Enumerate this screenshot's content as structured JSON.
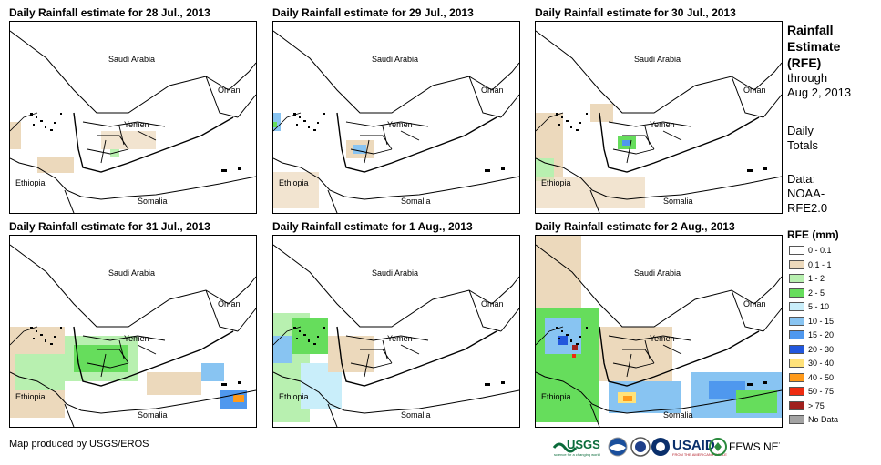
{
  "panels": [
    {
      "title": "Daily Rainfall estimate for 28 Jul., 2013"
    },
    {
      "title": "Daily Rainfall estimate for 29 Jul., 2013"
    },
    {
      "title": "Daily Rainfall estimate for 30 Jul., 2013"
    },
    {
      "title": "Daily Rainfall estimate for 31 Jul., 2013"
    },
    {
      "title": "Daily Rainfall estimate for 1 Aug., 2013"
    },
    {
      "title": "Daily Rainfall estimate for 2 Aug., 2013"
    }
  ],
  "places": {
    "saudi_arabia": "Saudi Arabia",
    "oman": "Oman",
    "yemen": "Yemen",
    "ethiopia": "Ethiopia",
    "somalia": "Somalia"
  },
  "sidebar": {
    "title_line1": "Rainfall",
    "title_line2": "Estimate",
    "title_line3": "(RFE)",
    "through": "through",
    "date": "Aug 2, 2013",
    "daily_line1": "Daily",
    "daily_line2": "Totals",
    "data_line1": "Data:",
    "data_line2": "NOAA-",
    "data_line3": "RFE2.0"
  },
  "legend": {
    "title": "RFE (mm)",
    "items": [
      {
        "label": "0 - 0.1",
        "color": "#ffffff"
      },
      {
        "label": "0.1 - 1",
        "color": "#ecd9bc"
      },
      {
        "label": "1 - 2",
        "color": "#b8f0b0"
      },
      {
        "label": "2 - 5",
        "color": "#66dd5c"
      },
      {
        "label": "5 - 10",
        "color": "#c9eefa"
      },
      {
        "label": "10 - 15",
        "color": "#88c4f2"
      },
      {
        "label": "15 - 20",
        "color": "#4f98ee"
      },
      {
        "label": "20 - 30",
        "color": "#2257dd"
      },
      {
        "label": "30 - 40",
        "color": "#ffe27a"
      },
      {
        "label": "40 - 50",
        "color": "#ff9a1a"
      },
      {
        "label": "50 - 75",
        "color": "#ee2b10"
      },
      {
        "label": "> 75",
        "color": "#a0201e"
      },
      {
        "label": "No Data",
        "color": "#a3a3a3"
      }
    ]
  },
  "credit": "Map produced by USGS/EROS",
  "logos": {
    "usgs": "USGS",
    "usgs_tagline": "science for a changing world",
    "usaid": "USAID",
    "usaid_tagline": "FROM THE AMERICAN PEOPLE",
    "fewsnet": "FEWS NET"
  }
}
